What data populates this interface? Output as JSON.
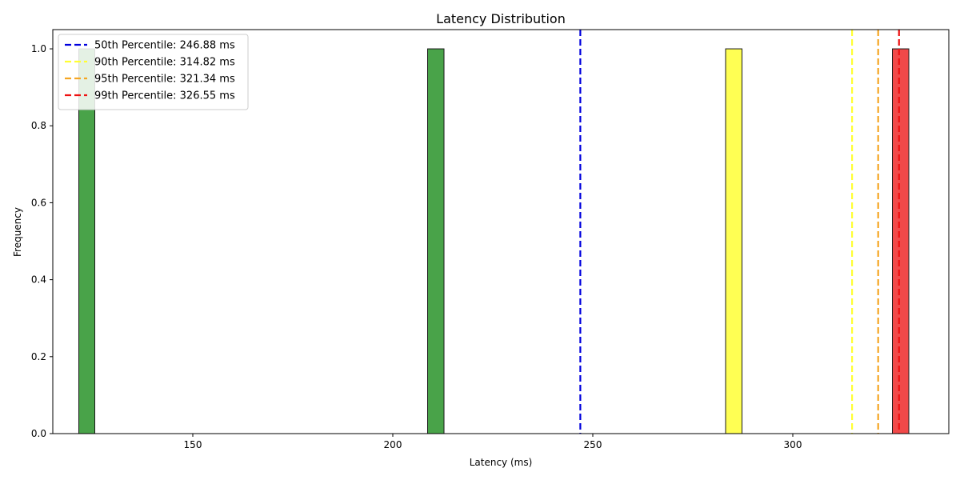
{
  "chart_data": {
    "type": "bar",
    "title": "Latency Distribution",
    "xlabel": "Latency (ms)",
    "ylabel": "Frequency",
    "xlim": [
      115,
      339
    ],
    "ylim": [
      0,
      1.05
    ],
    "x_ticks": [
      150,
      200,
      250,
      300
    ],
    "y_ticks": [
      0.0,
      0.2,
      0.4,
      0.6,
      0.8,
      1.0
    ],
    "y_tick_labels": [
      "0.0",
      "0.2",
      "0.4",
      "0.6",
      "0.8",
      "1.0"
    ],
    "bars": [
      {
        "x0": 121.5,
        "x1": 125.5,
        "value": 1,
        "color": "#3a9b3a"
      },
      {
        "x0": 208.7,
        "x1": 212.8,
        "value": 1,
        "color": "#3a9b3a"
      },
      {
        "x0": 283.2,
        "x1": 287.3,
        "value": 1,
        "color": "#ffff44"
      },
      {
        "x0": 324.9,
        "x1": 329.0,
        "value": 1,
        "color": "#f03a3a"
      }
    ],
    "percentile_lines": [
      {
        "label": "50th Percentile: 246.88 ms",
        "x": 246.88,
        "color": "#0000dd"
      },
      {
        "label": "90th Percentile: 314.82 ms",
        "x": 314.82,
        "color": "#ffff33"
      },
      {
        "label": "95th Percentile: 321.34 ms",
        "x": 321.34,
        "color": "#f5a623"
      },
      {
        "label": "99th Percentile: 326.55 ms",
        "x": 326.55,
        "color": "#ee1111"
      }
    ],
    "legend_position": "top-left",
    "grid": false
  }
}
